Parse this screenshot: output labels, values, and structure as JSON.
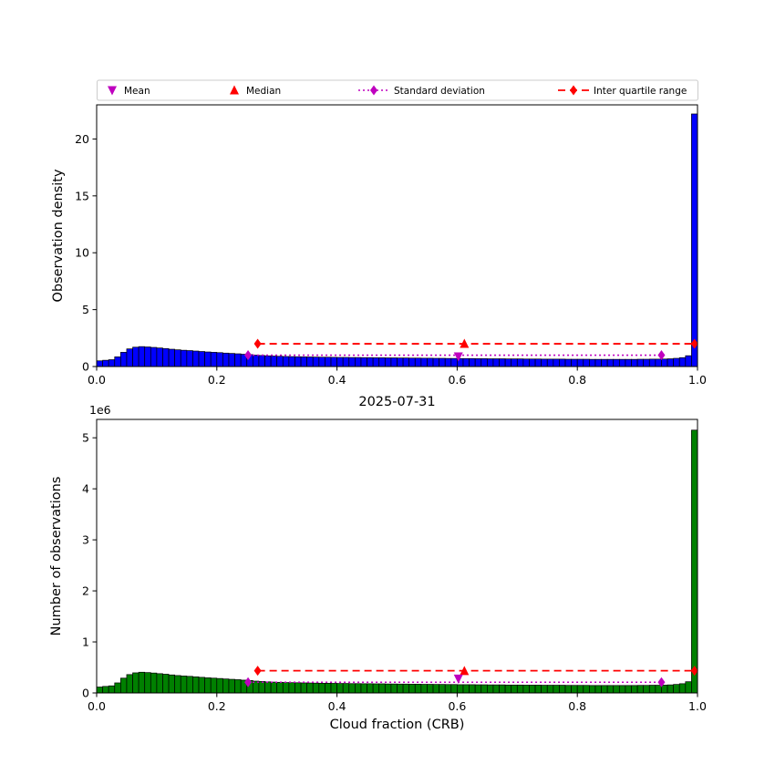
{
  "figure": {
    "background": "#ffffff",
    "date_title": "2025-07-31"
  },
  "colors": {
    "top_bar": "#0000ff",
    "bottom_bar": "#008000",
    "bar_edge": "#000000",
    "mean": "#bf00bf",
    "median": "#ff0000",
    "std": "#bf00bf",
    "iqr": "#ff0000",
    "legend_border": "#cccccc",
    "axis": "#000000"
  },
  "legend": {
    "items": [
      {
        "label": "Mean",
        "marker": "triangle-down",
        "line": "none",
        "color": "#bf00bf"
      },
      {
        "label": "Median",
        "marker": "triangle-up",
        "line": "none",
        "color": "#ff0000"
      },
      {
        "label": "Standard deviation",
        "marker": "diamond",
        "line": "dotted",
        "color": "#bf00bf"
      },
      {
        "label": "Inter quartile range",
        "marker": "diamond",
        "line": "dashed",
        "color": "#ff0000"
      }
    ]
  },
  "chart_data": [
    {
      "type": "bar",
      "title": "",
      "xlabel": "",
      "ylabel": "Observation density",
      "bar_color": "#0000ff",
      "bin_start": 0.0,
      "bin_width": 0.01,
      "xlim": [
        0.0,
        1.0
      ],
      "ylim": [
        0,
        23
      ],
      "xticks": [
        "0.0",
        "0.2",
        "0.4",
        "0.6",
        "0.8",
        "1.0"
      ],
      "yticks": [
        0,
        5,
        10,
        15,
        20
      ],
      "grid": false,
      "legend_position": "top",
      "values": [
        0.5,
        0.55,
        0.6,
        0.85,
        1.25,
        1.55,
        1.7,
        1.75,
        1.72,
        1.68,
        1.63,
        1.58,
        1.52,
        1.47,
        1.43,
        1.4,
        1.36,
        1.32,
        1.28,
        1.25,
        1.22,
        1.18,
        1.15,
        1.12,
        1.08,
        1.05,
        1.0,
        0.97,
        0.94,
        0.92,
        0.9,
        0.88,
        0.87,
        0.86,
        0.85,
        0.84,
        0.83,
        0.82,
        0.82,
        0.81,
        0.8,
        0.8,
        0.79,
        0.79,
        0.78,
        0.78,
        0.77,
        0.77,
        0.76,
        0.76,
        0.75,
        0.75,
        0.74,
        0.74,
        0.73,
        0.73,
        0.72,
        0.72,
        0.71,
        0.71,
        0.7,
        0.7,
        0.7,
        0.69,
        0.69,
        0.68,
        0.68,
        0.68,
        0.67,
        0.67,
        0.67,
        0.66,
        0.66,
        0.66,
        0.65,
        0.65,
        0.65,
        0.65,
        0.64,
        0.64,
        0.64,
        0.64,
        0.63,
        0.63,
        0.63,
        0.63,
        0.63,
        0.63,
        0.63,
        0.63,
        0.64,
        0.64,
        0.65,
        0.65,
        0.66,
        0.68,
        0.72,
        0.78,
        0.95,
        22.2
      ],
      "markers": {
        "mean": {
          "x": 0.602,
          "y": 0.88
        },
        "median": {
          "x": 0.612,
          "y": 2.0
        },
        "std": {
          "x1": 0.252,
          "x2": 0.94,
          "y": 1.0
        },
        "iqr": {
          "x1": 0.268,
          "x2": 0.995,
          "y": 2.0
        }
      }
    },
    {
      "type": "bar",
      "title": "2025-07-31",
      "xlabel": "Cloud fraction (CRB)",
      "ylabel": "Number of observations",
      "y_offset_label": "1e6",
      "y_unit_multiplier": 1000000,
      "bar_color": "#008000",
      "bin_start": 0.0,
      "bin_width": 0.01,
      "xlim": [
        0.0,
        1.0
      ],
      "ylim": [
        0,
        5.36
      ],
      "xticks": [
        "0.0",
        "0.2",
        "0.4",
        "0.6",
        "0.8",
        "1.0"
      ],
      "yticks": [
        0,
        1,
        2,
        3,
        4,
        5
      ],
      "grid": false,
      "values": [
        0.116,
        0.128,
        0.139,
        0.197,
        0.29,
        0.36,
        0.394,
        0.406,
        0.399,
        0.39,
        0.378,
        0.367,
        0.353,
        0.341,
        0.332,
        0.325,
        0.316,
        0.306,
        0.297,
        0.29,
        0.283,
        0.274,
        0.267,
        0.26,
        0.251,
        0.244,
        0.232,
        0.225,
        0.218,
        0.213,
        0.209,
        0.204,
        0.202,
        0.2,
        0.197,
        0.195,
        0.193,
        0.19,
        0.19,
        0.188,
        0.186,
        0.186,
        0.183,
        0.183,
        0.181,
        0.181,
        0.179,
        0.179,
        0.176,
        0.176,
        0.174,
        0.174,
        0.172,
        0.172,
        0.169,
        0.169,
        0.167,
        0.167,
        0.165,
        0.165,
        0.162,
        0.162,
        0.162,
        0.16,
        0.16,
        0.158,
        0.158,
        0.158,
        0.155,
        0.155,
        0.155,
        0.153,
        0.153,
        0.153,
        0.151,
        0.151,
        0.151,
        0.151,
        0.148,
        0.148,
        0.148,
        0.148,
        0.146,
        0.146,
        0.146,
        0.146,
        0.146,
        0.146,
        0.146,
        0.146,
        0.148,
        0.148,
        0.151,
        0.151,
        0.153,
        0.158,
        0.167,
        0.181,
        0.22,
        5.15
      ],
      "markers": {
        "mean": {
          "x": 0.602,
          "y": 0.28
        },
        "median": {
          "x": 0.612,
          "y": 0.43
        },
        "std": {
          "x1": 0.252,
          "x2": 0.94,
          "y": 0.21
        },
        "iqr": {
          "x1": 0.268,
          "x2": 0.995,
          "y": 0.435
        }
      }
    }
  ]
}
